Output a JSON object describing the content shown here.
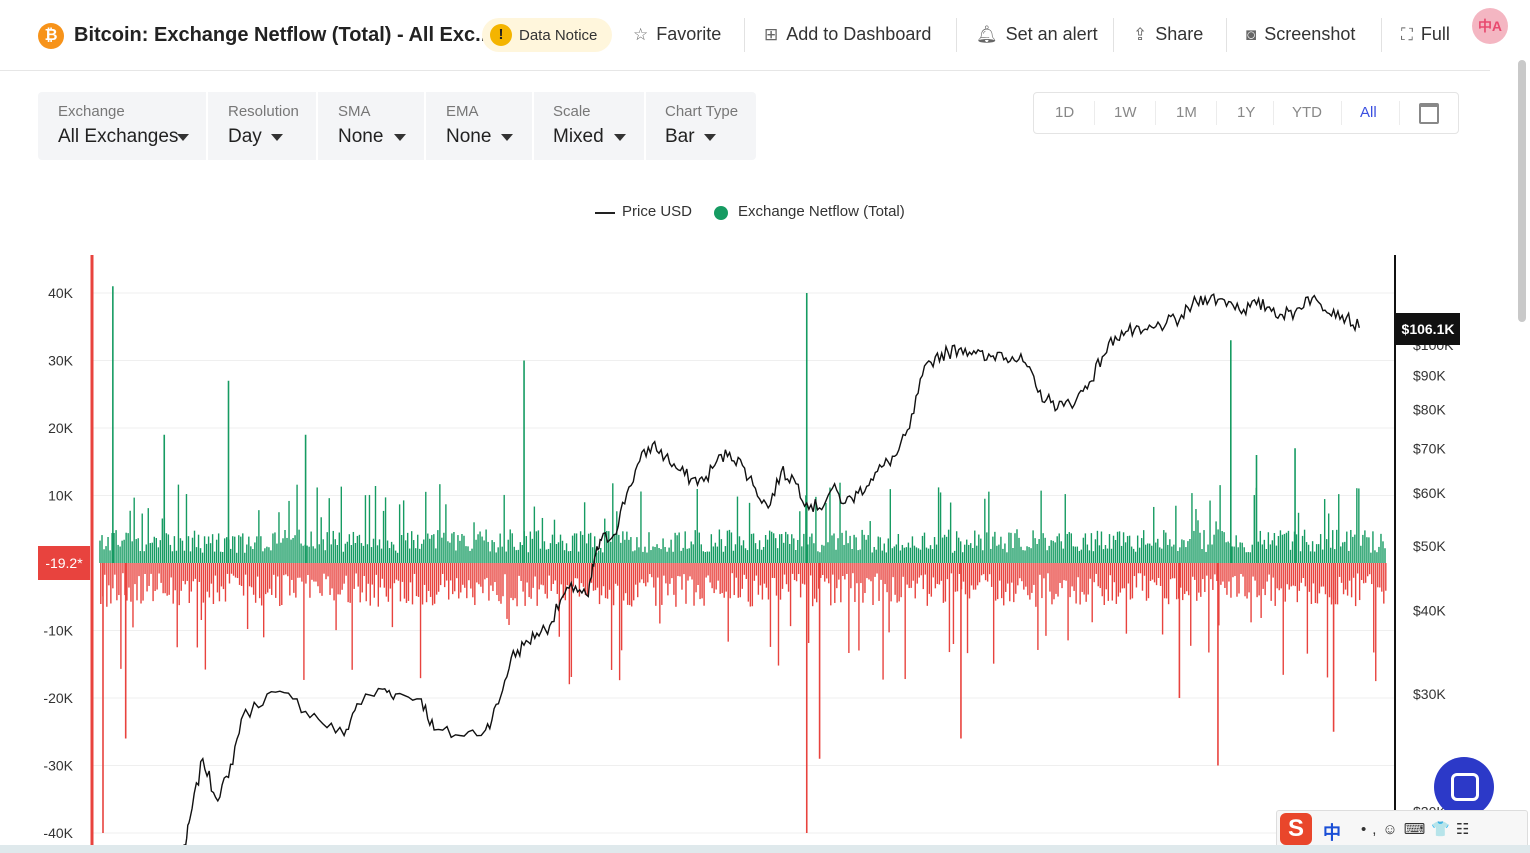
{
  "header": {
    "coin_icon": "bitcoin-icon",
    "coin_glyph": "₿",
    "title": "Bitcoin: Exchange Netflow (Total) - All Exc...",
    "notice_label": "Data Notice",
    "favorite_label": "Favorite",
    "dashboard_label": "Add to Dashboard",
    "alert_label": "Set an alert",
    "share_label": "Share",
    "screenshot_label": "Screenshot",
    "full_label": "Full",
    "avatar_text": "中A"
  },
  "controls": {
    "exchange": {
      "label": "Exchange",
      "value": "All Exchanges"
    },
    "resolution": {
      "label": "Resolution",
      "value": "Day"
    },
    "sma": {
      "label": "SMA",
      "value": "None"
    },
    "ema": {
      "label": "EMA",
      "value": "None"
    },
    "scale": {
      "label": "Scale",
      "value": "Mixed"
    },
    "chart_type": {
      "label": "Chart Type",
      "value": "Bar"
    }
  },
  "ranges": {
    "items": [
      "1D",
      "1W",
      "1M",
      "1Y",
      "YTD",
      "All"
    ],
    "active": "All"
  },
  "ime": {
    "logo": "S",
    "lang": "中",
    "rest": "•,☺⌨👕☷"
  },
  "chart_data": {
    "type": "bar",
    "legend": [
      "Price USD",
      "Exchange Netflow (Total)"
    ],
    "legend_position": "top-center",
    "left_axis": {
      "ticks": [
        40000,
        30000,
        20000,
        10000,
        0,
        -10000,
        -20000,
        -30000,
        -40000
      ],
      "tick_labels": [
        "40K",
        "30K",
        "20K",
        "10K",
        "",
        "-10K",
        "-20K",
        "-30K",
        "-40K"
      ],
      "range": [
        -40000,
        40000
      ]
    },
    "right_axis": {
      "scale": "log",
      "ticks": [
        100000,
        90000,
        80000,
        70000,
        60000,
        50000,
        40000,
        30000,
        20000
      ],
      "tick_labels": [
        "$100K",
        "$90K",
        "$80K",
        "$70K",
        "$60K",
        "$50K",
        "$40K",
        "$30K",
        "$20K"
      ]
    },
    "current_netflow_label": "-19.2*",
    "current_price_label": "$106.1K",
    "colors": {
      "inflow": "#169b62",
      "outflow": "#e8433e",
      "price": "#111111",
      "left_axis": "#e8433e"
    },
    "notable_netflow_spikes": [
      {
        "t": 0.01,
        "v": 41000
      },
      {
        "t": 0.05,
        "v": 19000
      },
      {
        "t": 0.1,
        "v": 27000
      },
      {
        "t": 0.16,
        "v": 19000
      },
      {
        "t": 0.33,
        "v": 30000
      },
      {
        "t": 0.55,
        "v": 40000
      },
      {
        "t": 0.88,
        "v": 33000
      },
      {
        "t": 0.9,
        "v": 16000
      },
      {
        "t": 0.93,
        "v": 17000
      },
      {
        "t": 0.0,
        "v": -40000
      },
      {
        "t": 0.02,
        "v": -26000
      },
      {
        "t": 0.55,
        "v": -40000
      },
      {
        "t": 0.56,
        "v": -29000
      },
      {
        "t": 0.67,
        "v": -26000
      },
      {
        "t": 0.84,
        "v": -20000
      },
      {
        "t": 0.87,
        "v": -30000
      },
      {
        "t": 0.96,
        "v": -25000
      }
    ],
    "price_series": [
      [
        0.065,
        17000
      ],
      [
        0.07,
        19500
      ],
      [
        0.08,
        24000
      ],
      [
        0.09,
        21000
      ],
      [
        0.1,
        22500
      ],
      [
        0.11,
        27500
      ],
      [
        0.13,
        30000
      ],
      [
        0.15,
        29500
      ],
      [
        0.17,
        27500
      ],
      [
        0.19,
        26000
      ],
      [
        0.2,
        29000
      ],
      [
        0.22,
        30500
      ],
      [
        0.23,
        30000
      ],
      [
        0.25,
        29500
      ],
      [
        0.26,
        26500
      ],
      [
        0.28,
        26000
      ],
      [
        0.3,
        26500
      ],
      [
        0.31,
        29000
      ],
      [
        0.32,
        34000
      ],
      [
        0.33,
        35500
      ],
      [
        0.34,
        37000
      ],
      [
        0.35,
        38000
      ],
      [
        0.36,
        42000
      ],
      [
        0.37,
        43500
      ],
      [
        0.38,
        42000
      ],
      [
        0.385,
        48000
      ],
      [
        0.39,
        51000
      ],
      [
        0.4,
        52000
      ],
      [
        0.41,
        60000
      ],
      [
        0.42,
        67000
      ],
      [
        0.43,
        71000
      ],
      [
        0.44,
        68000
      ],
      [
        0.45,
        65000
      ],
      [
        0.46,
        63000
      ],
      [
        0.47,
        62500
      ],
      [
        0.48,
        67000
      ],
      [
        0.49,
        69000
      ],
      [
        0.5,
        66000
      ],
      [
        0.51,
        61000
      ],
      [
        0.52,
        57000
      ],
      [
        0.53,
        64500
      ],
      [
        0.54,
        63000
      ],
      [
        0.55,
        58000
      ],
      [
        0.56,
        57000
      ],
      [
        0.57,
        61000
      ],
      [
        0.58,
        58000
      ],
      [
        0.59,
        60000
      ],
      [
        0.6,
        63000
      ],
      [
        0.61,
        66000
      ],
      [
        0.62,
        68500
      ],
      [
        0.63,
        75000
      ],
      [
        0.64,
        90000
      ],
      [
        0.65,
        96000
      ],
      [
        0.66,
        97500
      ],
      [
        0.67,
        99000
      ],
      [
        0.68,
        98000
      ],
      [
        0.69,
        95000
      ],
      [
        0.7,
        97500
      ],
      [
        0.71,
        96000
      ],
      [
        0.72,
        94000
      ],
      [
        0.73,
        85000
      ],
      [
        0.74,
        82000
      ],
      [
        0.75,
        81000
      ],
      [
        0.76,
        83000
      ],
      [
        0.77,
        88000
      ],
      [
        0.78,
        96000
      ],
      [
        0.79,
        103000
      ],
      [
        0.8,
        105000
      ],
      [
        0.81,
        104000
      ],
      [
        0.82,
        106000
      ],
      [
        0.83,
        108000
      ],
      [
        0.84,
        109000
      ],
      [
        0.85,
        115000
      ],
      [
        0.86,
        118000
      ],
      [
        0.87,
        117000
      ],
      [
        0.88,
        116000
      ],
      [
        0.89,
        113000
      ],
      [
        0.9,
        115000
      ],
      [
        0.91,
        114000
      ],
      [
        0.92,
        111000
      ],
      [
        0.93,
        112000
      ],
      [
        0.94,
        118000
      ],
      [
        0.95,
        115000
      ],
      [
        0.96,
        113000
      ],
      [
        0.97,
        110000
      ],
      [
        0.98,
        106100
      ]
    ]
  }
}
